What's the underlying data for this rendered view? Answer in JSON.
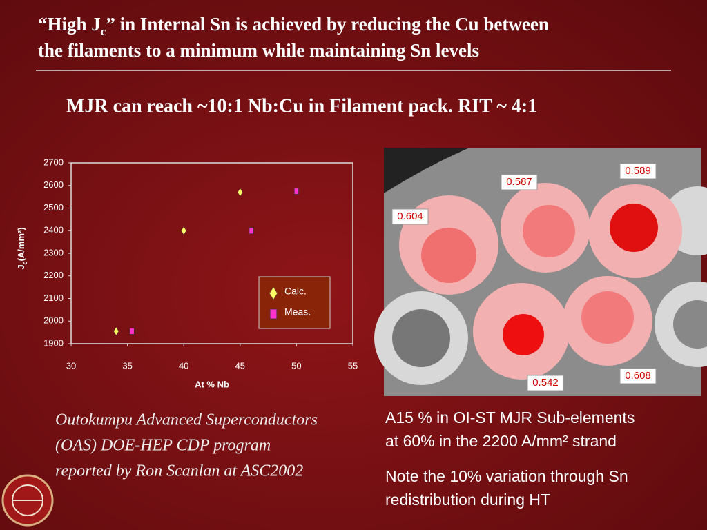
{
  "header": {
    "title_lines": [
      {
        "before": "“High J",
        "sub": "c",
        "after": "” in Internal Sn is achieved by reducing the Cu between"
      },
      {
        "before": "the filaments to a minimum while maintaining Sn levels"
      }
    ],
    "subtitle": "MJR can reach ~10:1 Nb:Cu in Filament pack. RIT ~ 4:1"
  },
  "chart_data": {
    "type": "scatter",
    "xlabel": "At % Nb",
    "ylabel": {
      "main": "J",
      "sub": "c",
      "rest": "(A/mm²)"
    },
    "xlim": [
      30,
      55
    ],
    "xticks": [
      30,
      35,
      40,
      45,
      50,
      55
    ],
    "ylim": [
      1900,
      2700
    ],
    "yticks": [
      1900,
      2000,
      2100,
      2200,
      2300,
      2400,
      2500,
      2600,
      2700
    ],
    "series": [
      {
        "name": "Calc.",
        "color": "#ffff66",
        "marker": "diamond",
        "x": [
          34,
          40,
          45
        ],
        "values": [
          1955,
          2400,
          2570
        ]
      },
      {
        "name": "Meas.",
        "color": "#ff33cc",
        "marker": "square",
        "x": [
          35.4,
          46,
          50
        ],
        "values": [
          1955,
          2400,
          2575
        ]
      }
    ]
  },
  "micrograph": {
    "labels": [
      "0.587",
      "0.589",
      "0.604",
      "0.542",
      "0.608"
    ]
  },
  "caption": {
    "lines": [
      "A15 % in OI-ST MJR Sub-elements",
      "at 60% in the 2200 A/mm² strand"
    ],
    "note_lines": [
      "Note the 10% variation through Sn",
      "redistribution during HT"
    ]
  },
  "credit": {
    "lines": [
      "Outokumpu Advanced Superconductors",
      "(OAS) DOE-HEP CDP program",
      "reported by Ron Scanlan at ASC2002"
    ]
  }
}
